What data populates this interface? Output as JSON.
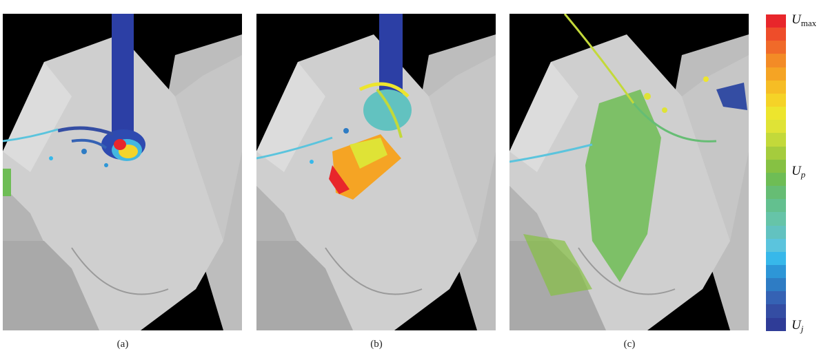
{
  "panels": [
    {
      "caption": "(a)"
    },
    {
      "caption": "(b)"
    },
    {
      "caption": "(c)"
    }
  ],
  "colorbar": {
    "colors": [
      "#e8262b",
      "#ee4d2a",
      "#f06a29",
      "#f38b26",
      "#f5a424",
      "#f6bd25",
      "#f5d327",
      "#ede52d",
      "#dfe336",
      "#c3d93a",
      "#a5cc3d",
      "#86c143",
      "#6ebd55",
      "#66bd74",
      "#63c08f",
      "#66c4a8",
      "#62c2c0",
      "#5bc4dd",
      "#37b8ea",
      "#2d96d7",
      "#2e7cc4",
      "#3562b4",
      "#344da3",
      "#2f3c97"
    ],
    "label_max_main": "U",
    "label_max_sub": "max",
    "label_mid_main": "U",
    "label_mid_sub": "p",
    "label_min_main": "U",
    "label_min_sub": "j"
  }
}
